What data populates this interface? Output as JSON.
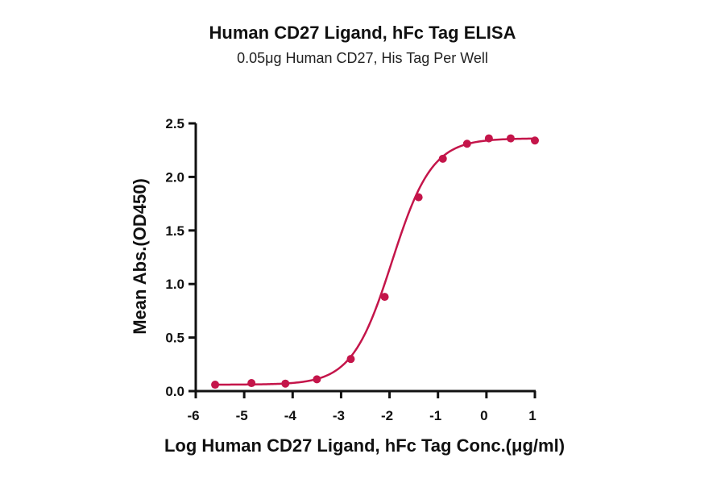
{
  "chart_data": {
    "type": "scatter",
    "title": "Human CD27 Ligand, hFc Tag ELISA",
    "subtitle": "0.05μg Human CD27, His Tag Per Well",
    "xlabel": "Log Human CD27 Ligand, hFc Tag Conc.(μg/ml)",
    "ylabel": "Mean Abs.(OD450)",
    "xlim": [
      -6,
      1
    ],
    "ylim": [
      0,
      2.5
    ],
    "xticks": [
      -6,
      -5,
      -4,
      -3,
      -2,
      -1,
      0,
      1
    ],
    "yticks": [
      0.0,
      0.5,
      1.0,
      1.5,
      2.0,
      2.5
    ],
    "xtick_labels": [
      "-6",
      "-5",
      "-4",
      "-3",
      "-2",
      "-1",
      "0",
      "1"
    ],
    "ytick_labels": [
      "0.0",
      "0.5",
      "1.0",
      "1.5",
      "2.0",
      "2.5"
    ],
    "series": [
      {
        "x": [
          -5.6,
          -4.85,
          -4.15,
          -3.5,
          -2.8,
          -2.1,
          -1.4,
          -0.9,
          -0.4,
          0.05,
          0.5,
          1.0
        ],
        "y": [
          0.06,
          0.075,
          0.07,
          0.11,
          0.3,
          0.88,
          1.81,
          2.17,
          2.31,
          2.36,
          2.36,
          2.34
        ],
        "color": "#c4154a",
        "fit": "4PL sigmoidal curve"
      }
    ],
    "grid": false,
    "legend": "none"
  }
}
